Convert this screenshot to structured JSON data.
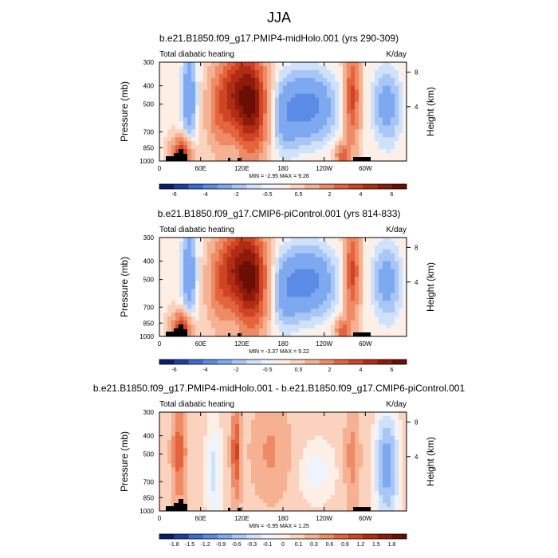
{
  "figure_title": "JJA",
  "chart_data": [
    {
      "type": "heatmap",
      "title": "b.e21.B1850.f09_g17.PMIP4-midHolo.001 (yrs 290-309)",
      "left_label": "Total diabatic heating",
      "right_label": "K/day",
      "ylabel": "Pressure (mb)",
      "ylabel_right": "Height (km)",
      "x_ticks": [
        "0",
        "60E",
        "120E",
        "180",
        "120W",
        "60W"
      ],
      "x_values": [
        0,
        60,
        120,
        180,
        240,
        300
      ],
      "xlim": [
        0,
        360
      ],
      "y_ticks": [
        "300",
        "400",
        "500",
        "700",
        "850",
        "1000"
      ],
      "y_values": [
        300,
        400,
        500,
        700,
        850,
        1000
      ],
      "ylim": [
        1000,
        300
      ],
      "height_ticks": [
        "8",
        "4"
      ],
      "stats": "MIN = -2.95  MAX = 9.26",
      "colorbar_labels": [
        "-6",
        "-4",
        "-2",
        "-0.5",
        "0.5",
        "2",
        "4",
        "6"
      ],
      "colorbar_colors": [
        "#0a1d6b",
        "#1f3fa0",
        "#3a6ad4",
        "#5b8be6",
        "#7ea8f0",
        "#a9c6f6",
        "#d0e2fa",
        "#eef3fc",
        "#fdeee6",
        "#fbd2bd",
        "#f6b092",
        "#ef8a66",
        "#e4643e",
        "#cf4424",
        "#b02c14",
        "#8e1a0c",
        "#6a0e06"
      ]
    },
    {
      "type": "heatmap",
      "title": "b.e21.B1850.f09_g17.CMIP6-piControl.001 (yrs 814-833)",
      "left_label": "Total diabatic heating",
      "right_label": "K/day",
      "ylabel": "Pressure (mb)",
      "ylabel_right": "Height (km)",
      "x_ticks": [
        "0",
        "60E",
        "120E",
        "180",
        "120W",
        "60W"
      ],
      "x_values": [
        0,
        60,
        120,
        180,
        240,
        300
      ],
      "xlim": [
        0,
        360
      ],
      "y_ticks": [
        "300",
        "400",
        "500",
        "700",
        "850",
        "1000"
      ],
      "y_values": [
        300,
        400,
        500,
        700,
        850,
        1000
      ],
      "ylim": [
        1000,
        300
      ],
      "height_ticks": [
        "8",
        "4"
      ],
      "stats": "MIN = -3.37  MAX = 9.22",
      "colorbar_labels": [
        "-6",
        "-4",
        "-2",
        "-0.5",
        "0.5",
        "2",
        "4",
        "6"
      ],
      "colorbar_colors": [
        "#0a1d6b",
        "#1f3fa0",
        "#3a6ad4",
        "#5b8be6",
        "#7ea8f0",
        "#a9c6f6",
        "#d0e2fa",
        "#eef3fc",
        "#fdeee6",
        "#fbd2bd",
        "#f6b092",
        "#ef8a66",
        "#e4643e",
        "#cf4424",
        "#b02c14",
        "#8e1a0c",
        "#6a0e06"
      ]
    },
    {
      "type": "heatmap",
      "title": "b.e21.B1850.f09_g17.PMIP4-midHolo.001 - b.e21.B1850.f09_g17.CMIP6-piControl.001",
      "left_label": "Total diabatic heating",
      "right_label": "K/day",
      "ylabel": "Pressure (mb)",
      "ylabel_right": "Height (km)",
      "x_ticks": [
        "0",
        "60E",
        "120E",
        "180",
        "120W",
        "60W"
      ],
      "x_values": [
        0,
        60,
        120,
        180,
        240,
        300
      ],
      "xlim": [
        0,
        360
      ],
      "y_ticks": [
        "300",
        "400",
        "500",
        "700",
        "850",
        "1000"
      ],
      "y_values": [
        300,
        400,
        500,
        700,
        850,
        1000
      ],
      "ylim": [
        1000,
        300
      ],
      "height_ticks": [
        "8",
        "4"
      ],
      "stats": "MIN = -0.95  MAX = 1.25",
      "colorbar_labels": [
        "-1.8",
        "-1.5",
        "-1.2",
        "-0.9",
        "-0.6",
        "-0.3",
        "-0.1",
        "0",
        "0.1",
        "0.3",
        "0.6",
        "0.9",
        "1.2",
        "1.5",
        "1.8"
      ],
      "colorbar_colors": [
        "#0a1d6b",
        "#1f3fa0",
        "#3a6ad4",
        "#5b8be6",
        "#7ea8f0",
        "#a9c6f6",
        "#d0e2fa",
        "#eef3fc",
        "#fdeee6",
        "#fbd2bd",
        "#f6b092",
        "#ef8a66",
        "#e4643e",
        "#cf4424",
        "#b02c14",
        "#8e1a0c",
        "#6a0e06"
      ]
    }
  ]
}
